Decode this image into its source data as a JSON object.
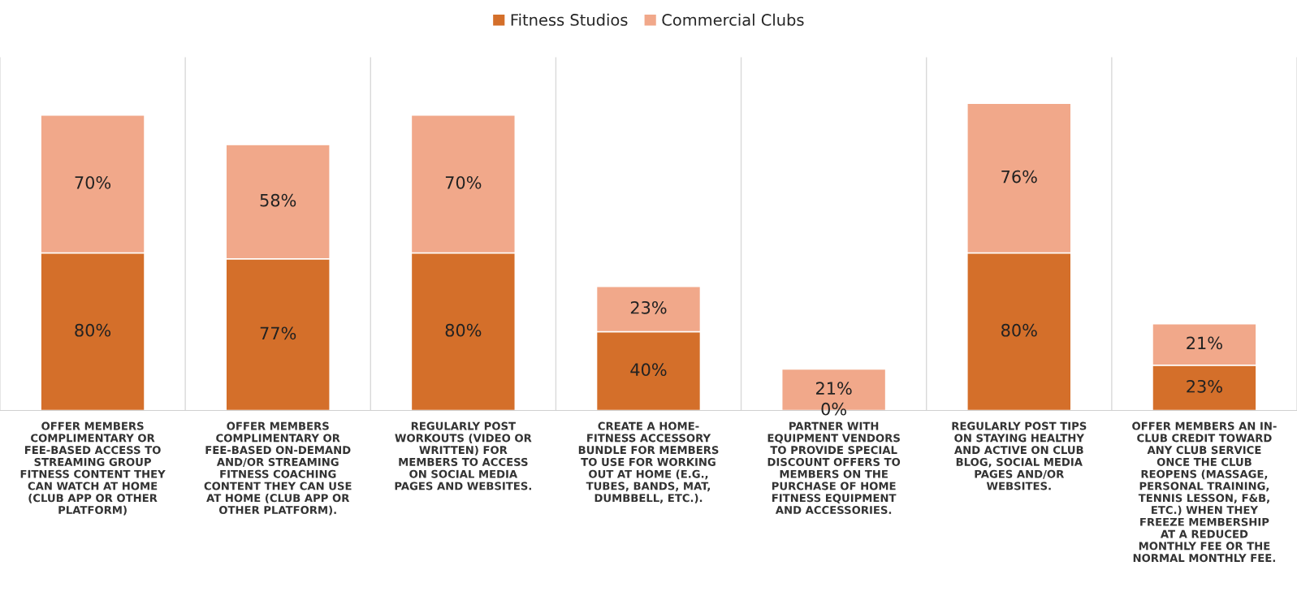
{
  "chart_data": {
    "type": "bar",
    "stacked": true,
    "legend": "top",
    "grid": "x",
    "categories": [
      "OFFER MEMBERS\nCOMPLIMENTARY OR\nFEE-BASED ACCESS TO\nSTREAMING GROUP\nFITNESS CONTENT THEY\nCAN WATCH AT HOME\n(CLUB APP OR OTHER\nPLATFORM)",
      "OFFER MEMBERS\nCOMPLIMENTARY OR\nFEE-BASED ON-DEMAND\nAND/OR STREAMING\nFITNESS COACHING\nCONTENT THEY CAN USE\nAT HOME (CLUB APP OR\nOTHER PLATFORM).",
      "REGULARLY POST\nWORKOUTS (VIDEO OR\nWRITTEN) FOR\nMEMBERS TO ACCESS\nON SOCIAL MEDIA\nPAGES AND WEBSITES.",
      "CREATE A HOME-\nFITNESS ACCESSORY\nBUNDLE FOR MEMBERS\nTO USE FOR WORKING\nOUT AT HOME (E.G.,\nTUBES, BANDS, MAT,\nDUMBBELL, ETC.).",
      "PARTNER WITH\nEQUIPMENT VENDORS\nTO PROVIDE SPECIAL\nDISCOUNT OFFERS TO\nMEMBERS ON THE\nPURCHASE OF HOME\nFITNESS EQUIPMENT\nAND ACCESSORIES.",
      "REGULARLY POST TIPS\nON STAYING HEALTHY\nAND ACTIVE ON CLUB\nBLOG, SOCIAL MEDIA\nPAGES AND/OR\nWEBSITES.",
      "OFFER MEMBERS AN IN-\nCLUB CREDIT TOWARD\nANY CLUB SERVICE\nONCE THE CLUB\nREOPENS (MASSAGE,\nPERSONAL TRAINING,\nTENNIS LESSON, F&B,\nETC.) WHEN THEY\nFREEZE MEMBERSHIP\nAT A REDUCED\nMONTHLY FEE OR THE\nNORMAL MONTHLY FEE."
    ],
    "series": [
      {
        "name": "Fitness Studios",
        "color": "#d46f2a",
        "values": [
          80,
          77,
          80,
          40,
          0,
          80,
          23
        ],
        "value_labels": [
          "80%",
          "77%",
          "80%",
          "40%",
          "0%",
          "80%",
          "23%"
        ]
      },
      {
        "name": "Commercial Clubs",
        "color": "#f1a88a",
        "values": [
          70,
          58,
          70,
          23,
          21,
          76,
          21
        ],
        "value_labels": [
          "70%",
          "58%",
          "70%",
          "23%",
          "21%",
          "76%",
          "21%"
        ]
      }
    ]
  }
}
